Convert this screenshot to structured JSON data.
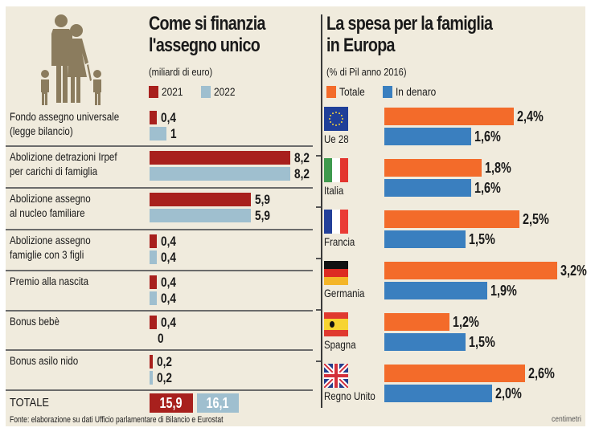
{
  "colors": {
    "background": "#f0ebdd",
    "y2021": "#a8201d",
    "y2022": "#9fbfcf",
    "totale": "#f36b2a",
    "in_denaro": "#3a7fbf",
    "family_icon": "#8b7c5e"
  },
  "left": {
    "title_line1": "Come si finanzia",
    "title_line2": "l'assegno unico",
    "subtitle": "(miliardi di euro)",
    "legend": [
      "2021",
      "2022"
    ],
    "total_label": "TOTALE",
    "total_2021": "15,9",
    "total_2022": "16,1",
    "source": "Fonte: elaborazione su dati Ufficio parlamentare di Bilancio e Eurostat"
  },
  "right": {
    "title_line1": "La spesa per la famiglia",
    "title_line2": "in Europa",
    "subtitle": "(% di Pil anno 2016)",
    "legend": [
      "Totale",
      "In denaro"
    ],
    "signature": "centimetri"
  },
  "chart_data": [
    {
      "type": "bar",
      "orientation": "horizontal",
      "title": "Come si finanzia l'assegno unico",
      "subtitle": "(miliardi di euro)",
      "categories": [
        [
          "Fondo assegno universale",
          "(legge bilancio)"
        ],
        [
          "Abolizione detrazioni Irpef",
          "per carichi di famiglia"
        ],
        [
          "Abolizione assegno",
          "al nucleo familiare"
        ],
        [
          "Abolizione assegno",
          "famiglie con 3 figli"
        ],
        [
          "Premio alla nascita"
        ],
        [
          "Bonus bebè"
        ],
        [
          "Bonus asilo nido"
        ]
      ],
      "series": [
        {
          "name": "2021",
          "values": [
            0.4,
            8.2,
            5.9,
            0.4,
            0.4,
            0.4,
            0.2
          ],
          "labels": [
            "0,4",
            "8,2",
            "5,9",
            "0,4",
            "0,4",
            "0,4",
            "0,2"
          ]
        },
        {
          "name": "2022",
          "values": [
            1,
            8.2,
            5.9,
            0.4,
            0.4,
            0,
            0.2
          ],
          "labels": [
            "1",
            "8,2",
            "5,9",
            "0,4",
            "0,4",
            "0",
            "0,2"
          ]
        }
      ],
      "totals": {
        "2021": 15.9,
        "2022": 16.1
      },
      "xlim": [
        0,
        8.2
      ]
    },
    {
      "type": "bar",
      "orientation": "horizontal",
      "title": "La spesa per la famiglia in Europa",
      "subtitle": "(% di Pil anno 2016)",
      "categories": [
        "Ue 28",
        "Italia",
        "Francia",
        "Germania",
        "Spagna",
        "Regno Unito"
      ],
      "flags": [
        "eu-flag-icon",
        "italy-flag-icon",
        "france-flag-icon",
        "germany-flag-icon",
        "spain-flag-icon",
        "uk-flag-icon"
      ],
      "series": [
        {
          "name": "Totale",
          "values": [
            2.4,
            1.8,
            2.5,
            3.2,
            1.2,
            2.6
          ],
          "labels": [
            "2,4%",
            "1,8%",
            "2,5%",
            "3,2%",
            "1,2%",
            "2,6%"
          ]
        },
        {
          "name": "In denaro",
          "values": [
            1.6,
            1.6,
            1.5,
            1.9,
            1.5,
            2.0
          ],
          "labels": [
            "1,6%",
            "1,6%",
            "1,5%",
            "1,9%",
            "1,5%",
            "2,0%"
          ]
        }
      ],
      "xlim": [
        0,
        3.2
      ]
    }
  ]
}
